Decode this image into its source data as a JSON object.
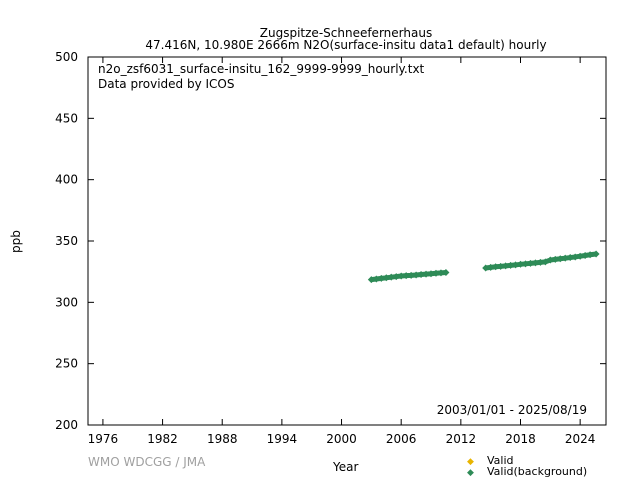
{
  "chart_data": {
    "type": "scatter",
    "title": "Zugspitze-Schneefernerhaus",
    "subtitle": "47.416N, 10.980E 2666m    N2O(surface-insitu data1 default) hourly",
    "xlabel": "Year",
    "ylabel": "ppb",
    "xlim": [
      1974.5,
      2026.6
    ],
    "ylim": [
      200,
      500
    ],
    "x_ticks": [
      "1976",
      "1982",
      "1988",
      "1994",
      "2000",
      "2006",
      "2012",
      "2018",
      "2024"
    ],
    "y_ticks": [
      "200",
      "250",
      "300",
      "350",
      "400",
      "450",
      "500"
    ],
    "annotations": {
      "file": "n2o_zsf6031_surface-insitu_162_9999-9999_hourly.txt",
      "provider": "Data provided by ICOS",
      "period": "2003/01/01 - 2025/08/19"
    },
    "legend": {
      "placement": "bottom-right-outside"
    },
    "series": [
      {
        "name": "Valid",
        "color": "#e8b400",
        "x": [],
        "y": []
      },
      {
        "name": "Valid(background)",
        "color": "#2e8b57",
        "x": [
          2003.0,
          2003.5,
          2004.0,
          2004.5,
          2005.0,
          2005.5,
          2006.0,
          2006.5,
          2007.0,
          2007.5,
          2008.0,
          2008.5,
          2009.0,
          2009.5,
          2010.0,
          2010.5,
          2014.5,
          2015.0,
          2015.5,
          2016.0,
          2016.5,
          2017.0,
          2017.5,
          2018.0,
          2018.5,
          2019.0,
          2019.5,
          2020.0,
          2020.5,
          2021.0,
          2021.5,
          2022.0,
          2022.5,
          2023.0,
          2023.5,
          2024.0,
          2024.5,
          2025.0,
          2025.6
        ],
        "y": [
          318.5,
          319.0,
          319.5,
          320.0,
          320.5,
          321.0,
          321.5,
          321.8,
          322.0,
          322.3,
          322.7,
          323.0,
          323.3,
          323.7,
          324.0,
          324.3,
          328.0,
          328.5,
          329.0,
          329.3,
          329.7,
          330.1,
          330.5,
          331.0,
          331.4,
          331.8,
          332.2,
          332.6,
          333.0,
          334.5,
          335.0,
          335.5,
          336.0,
          336.5,
          337.0,
          337.6,
          338.2,
          338.8,
          339.4
        ]
      }
    ]
  },
  "credit": "WMO WDCGG / JMA"
}
